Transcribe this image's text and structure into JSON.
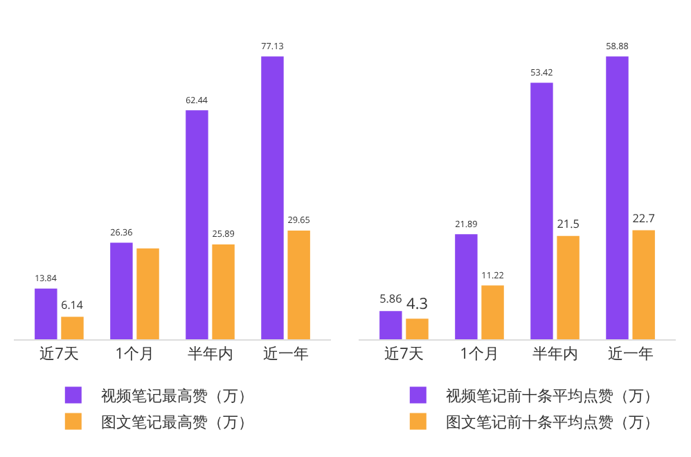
{
  "chart_data": [
    {
      "type": "bar",
      "categories": [
        "近7天",
        "1个月",
        "半年内",
        "近一年"
      ],
      "data_labels": true,
      "legend": "bottom",
      "grid": false,
      "series": [
        {
          "name": "视频笔记最高赞（万）",
          "color": "#8a45f0",
          "values": [
            13.84,
            26.36,
            62.44,
            77.13
          ],
          "value_labels": [
            "13.84",
            "26.36",
            "62.44",
            "77.13"
          ]
        },
        {
          "name": "图文笔记最高赞（万）",
          "color": "#f9a93a",
          "values": [
            6.14,
            24.8,
            25.89,
            29.65
          ],
          "value_labels": [
            "6.14",
            null,
            "25.89",
            "29.65"
          ]
        }
      ]
    },
    {
      "type": "bar",
      "categories": [
        "近7天",
        "1个月",
        "半年内",
        "近一年"
      ],
      "data_labels": true,
      "legend": "bottom",
      "grid": false,
      "series": [
        {
          "name": "视频笔记前十条平均点赞（万）",
          "color": "#8a45f0",
          "values": [
            5.86,
            21.89,
            53.42,
            58.88
          ],
          "value_labels": [
            "5.86",
            "21.89",
            "53.42",
            "58.88"
          ]
        },
        {
          "name": "图文笔记前十条平均点赞（万）",
          "color": "#f9a93a",
          "values": [
            4.3,
            11.22,
            21.5,
            22.7
          ],
          "value_labels": [
            "4.3",
            "11.22",
            "21.5",
            "22.7"
          ]
        }
      ]
    }
  ]
}
